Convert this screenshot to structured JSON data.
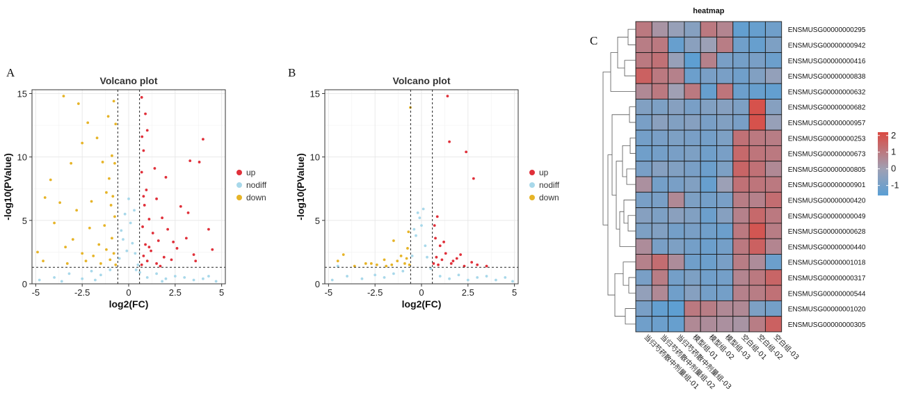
{
  "chart_data": [
    {
      "type": "scatter",
      "panel_label": "A",
      "title": "Volcano plot",
      "xlabel": "log2(FC)",
      "ylabel": "-log10(PValue)",
      "xlim": [
        -5.2,
        5.2
      ],
      "ylim": [
        0,
        15.3
      ],
      "xticks": [
        -5,
        -2.5,
        0,
        2.5,
        5
      ],
      "xtick_labels": [
        "-5",
        "-2.5",
        "0",
        "2.5",
        "5"
      ],
      "yticks": [
        0,
        5,
        10,
        15
      ],
      "ytick_labels": [
        "0",
        "5",
        "10",
        "15"
      ],
      "thresholds": {
        "fc": [
          -0.585,
          0.585
        ],
        "pvalue": 1.3
      },
      "grid": true,
      "legend": "right",
      "series": [
        {
          "name": "up",
          "color": "#e0303a",
          "points": [
            [
              0.7,
              1.5
            ],
            [
              0.8,
              2.2
            ],
            [
              0.9,
              3.1
            ],
            [
              1.0,
              1.8
            ],
            [
              1.2,
              2.6
            ],
            [
              1.5,
              1.6
            ],
            [
              1.9,
              2.1
            ],
            [
              2.3,
              1.9
            ],
            [
              0.75,
              4.5
            ],
            [
              0.85,
              6.2
            ],
            [
              1.1,
              5.1
            ],
            [
              0.95,
              7.4
            ],
            [
              0.7,
              8.8
            ],
            [
              1.3,
              4.0
            ],
            [
              0.8,
              10.5
            ],
            [
              1.0,
              12.1
            ],
            [
              0.7,
              14.7
            ],
            [
              0.9,
              13.4
            ],
            [
              1.6,
              3.4
            ],
            [
              2.1,
              4.3
            ],
            [
              2.6,
              2.8
            ],
            [
              3.1,
              3.6
            ],
            [
              3.5,
              2.3
            ],
            [
              3.2,
              5.6
            ],
            [
              4.3,
              4.3
            ],
            [
              2.8,
              6.1
            ],
            [
              1.5,
              6.7
            ],
            [
              3.8,
              9.6
            ],
            [
              4.0,
              11.4
            ],
            [
              3.3,
              9.7
            ],
            [
              2.0,
              8.4
            ],
            [
              1.4,
              9.1
            ],
            [
              0.72,
              11.6
            ],
            [
              1.8,
              5.2
            ],
            [
              2.4,
              3.3
            ],
            [
              3.6,
              1.8
            ],
            [
              4.5,
              2.7
            ],
            [
              0.8,
              6.9
            ],
            [
              1.1,
              2.9
            ],
            [
              1.7,
              1.4
            ]
          ]
        },
        {
          "name": "nodiff",
          "color": "#a8d8ea",
          "points": [
            [
              -4.8,
              0.3
            ],
            [
              -4.0,
              0.5
            ],
            [
              -3.2,
              0.8
            ],
            [
              -2.5,
              0.4
            ],
            [
              -2.0,
              1.0
            ],
            [
              -1.5,
              0.7
            ],
            [
              -1.0,
              1.1
            ],
            [
              -0.5,
              2.0
            ],
            [
              -0.3,
              3.5
            ],
            [
              -0.2,
              5.5
            ],
            [
              0.0,
              6.7
            ],
            [
              0.1,
              4.8
            ],
            [
              0.2,
              3.2
            ],
            [
              0.35,
              2.4
            ],
            [
              0.5,
              1.5
            ],
            [
              0.6,
              0.9
            ],
            [
              1.0,
              0.5
            ],
            [
              1.5,
              0.8
            ],
            [
              2.0,
              0.4
            ],
            [
              2.5,
              0.6
            ],
            [
              3.0,
              0.5
            ],
            [
              3.5,
              0.3
            ],
            [
              4.0,
              0.4
            ],
            [
              4.7,
              0.2
            ],
            [
              -0.4,
              4.2
            ],
            [
              0.3,
              5.8
            ],
            [
              -0.1,
              2.6
            ],
            [
              0.4,
              1.1
            ],
            [
              -3.6,
              0.2
            ],
            [
              4.3,
              0.6
            ],
            [
              -1.8,
              0.3
            ],
            [
              1.8,
              0.2
            ]
          ]
        },
        {
          "name": "down",
          "color": "#e6b428",
          "points": [
            [
              -0.7,
              1.5
            ],
            [
              -0.8,
              2.4
            ],
            [
              -0.9,
              3.6
            ],
            [
              -1.0,
              1.9
            ],
            [
              -1.2,
              2.7
            ],
            [
              -1.5,
              1.6
            ],
            [
              -1.9,
              2.2
            ],
            [
              -2.3,
              1.8
            ],
            [
              -0.75,
              5.3
            ],
            [
              -0.85,
              6.9
            ],
            [
              -1.05,
              8.3
            ],
            [
              -0.9,
              10.1
            ],
            [
              -0.7,
              12.6
            ],
            [
              -0.8,
              14.4
            ],
            [
              -1.1,
              13.2
            ],
            [
              -1.3,
              4.6
            ],
            [
              -1.6,
              3.1
            ],
            [
              -2.1,
              4.4
            ],
            [
              -2.5,
              2.4
            ],
            [
              -3.0,
              3.5
            ],
            [
              -3.4,
              2.9
            ],
            [
              -3.7,
              6.4
            ],
            [
              -4.2,
              8.2
            ],
            [
              -4.5,
              6.8
            ],
            [
              -4.9,
              2.5
            ],
            [
              -3.5,
              14.8
            ],
            [
              -2.7,
              14.2
            ],
            [
              -2.2,
              12.7
            ],
            [
              -2.5,
              11.1
            ],
            [
              -3.1,
              9.5
            ],
            [
              -4.0,
              4.8
            ],
            [
              -1.4,
              9.6
            ],
            [
              -1.2,
              7.2
            ],
            [
              -2.8,
              5.8
            ],
            [
              -1.7,
              11.5
            ],
            [
              -0.95,
              6.2
            ],
            [
              -0.75,
              9.5
            ],
            [
              -4.6,
              1.8
            ],
            [
              -2.0,
              6.5
            ],
            [
              -3.3,
              1.6
            ]
          ]
        }
      ]
    },
    {
      "type": "scatter",
      "panel_label": "B",
      "title": "Volcano plot",
      "xlabel": "log2(FC)",
      "ylabel": "-log10(PValue)",
      "xlim": [
        -5.2,
        5.2
      ],
      "ylim": [
        0,
        15.3
      ],
      "xticks": [
        -5,
        -2.5,
        0,
        2.5,
        5
      ],
      "xtick_labels": [
        "-5",
        "-2.5",
        "0",
        "2.5",
        "5"
      ],
      "yticks": [
        0,
        5,
        10,
        15
      ],
      "ytick_labels": [
        "0",
        "5",
        "10",
        "15"
      ],
      "thresholds": {
        "fc": [
          -0.585,
          0.585
        ],
        "pvalue": 1.3
      },
      "grid": true,
      "legend": "right",
      "series": [
        {
          "name": "up",
          "color": "#e0303a",
          "points": [
            [
              0.65,
              1.6
            ],
            [
              0.8,
              2.1
            ],
            [
              0.9,
              1.5
            ],
            [
              1.0,
              3.0
            ],
            [
              1.1,
              1.9
            ],
            [
              1.3,
              2.4
            ],
            [
              1.6,
              1.6
            ],
            [
              1.9,
              2.0
            ],
            [
              2.3,
              1.4
            ],
            [
              2.7,
              1.7
            ],
            [
              3.0,
              1.5
            ],
            [
              3.5,
              1.4
            ],
            [
              0.7,
              4.6
            ],
            [
              0.75,
              3.6
            ],
            [
              0.85,
              5.3
            ],
            [
              1.2,
              3.3
            ],
            [
              1.4,
              14.8
            ],
            [
              1.5,
              11.2
            ],
            [
              2.4,
              10.4
            ],
            [
              2.8,
              8.3
            ],
            [
              1.7,
              1.8
            ],
            [
              2.1,
              2.3
            ]
          ]
        },
        {
          "name": "nodiff",
          "color": "#a8d8ea",
          "points": [
            [
              -4.8,
              0.3
            ],
            [
              -4.0,
              0.6
            ],
            [
              -3.2,
              0.4
            ],
            [
              -2.5,
              0.7
            ],
            [
              -2.0,
              0.5
            ],
            [
              -1.5,
              0.8
            ],
            [
              -1.0,
              1.0
            ],
            [
              -0.5,
              2.2
            ],
            [
              -0.3,
              3.8
            ],
            [
              -0.2,
              5.6
            ],
            [
              0.0,
              4.6
            ],
            [
              0.1,
              5.9
            ],
            [
              0.2,
              3.0
            ],
            [
              0.3,
              2.1
            ],
            [
              0.5,
              1.2
            ],
            [
              1.0,
              0.6
            ],
            [
              1.5,
              0.4
            ],
            [
              2.0,
              0.7
            ],
            [
              2.5,
              0.3
            ],
            [
              3.0,
              0.5
            ],
            [
              3.5,
              0.6
            ],
            [
              4.0,
              0.3
            ],
            [
              4.5,
              0.5
            ],
            [
              -4.5,
              1.4
            ],
            [
              4.9,
              0.2
            ],
            [
              -0.1,
              5.2
            ],
            [
              -0.4,
              4.3
            ]
          ]
        },
        {
          "name": "down",
          "color": "#e6b428",
          "points": [
            [
              -0.65,
              1.5
            ],
            [
              -0.8,
              2.0
            ],
            [
              -0.9,
              1.6
            ],
            [
              -1.1,
              2.2
            ],
            [
              -1.3,
              1.8
            ],
            [
              -1.6,
              1.5
            ],
            [
              -2.0,
              1.9
            ],
            [
              -2.4,
              1.5
            ],
            [
              -3.0,
              1.6
            ],
            [
              -3.6,
              1.4
            ],
            [
              -4.2,
              2.3
            ],
            [
              -4.5,
              1.8
            ],
            [
              -0.7,
              4.1
            ],
            [
              -0.6,
              13.9
            ],
            [
              -1.5,
              3.4
            ],
            [
              -0.75,
              2.8
            ],
            [
              -2.7,
              1.6
            ],
            [
              -1.9,
              1.4
            ]
          ]
        }
      ]
    },
    {
      "type": "heatmap",
      "panel_label": "C",
      "title": "heatmap",
      "columns": [
        "当归芍药散中剂量组-01",
        "当归芍药散中剂量组-02",
        "当归芍药散中剂量组-03",
        "模型组-01",
        "模型组-02",
        "模型组-03",
        "空白组-01",
        "空白组-02",
        "空白组-03"
      ],
      "rows": [
        "ENSMUSG00000000295",
        "ENSMUSG00000000942",
        "ENSMUSG00000000416",
        "ENSMUSG00000000838",
        "ENSMUSG00000000632",
        "ENSMUSG00000000682",
        "ENSMUSG00000000957",
        "ENSMUSG00000000253",
        "ENSMUSG00000000673",
        "ENSMUSG00000000805",
        "ENSMUSG00000000901",
        "ENSMUSG00000000420",
        "ENSMUSG00000000049",
        "ENSMUSG00000000628",
        "ENSMUSG00000000440",
        "ENSMUSG00000001018",
        "ENSMUSG00000000317",
        "ENSMUSG00000000544",
        "ENSMUSG00000001020",
        "ENSMUSG00000000305"
      ],
      "values": [
        [
          1.0,
          0.3,
          -0.2,
          -0.6,
          1.0,
          0.7,
          -1.4,
          -1.3,
          -1.1
        ],
        [
          0.9,
          1.0,
          -1.3,
          -0.5,
          -0.1,
          0.9,
          -1.1,
          -1.3,
          -0.8
        ],
        [
          1.0,
          1.2,
          -0.2,
          -1.5,
          0.8,
          -0.9,
          -1.0,
          -0.9,
          -1.2
        ],
        [
          1.6,
          1.0,
          0.8,
          -1.2,
          -0.9,
          -0.9,
          -1.1,
          -0.7,
          -0.3
        ],
        [
          0.6,
          1.0,
          0.0,
          1.0,
          -1.3,
          1.1,
          -1.2,
          -1.3,
          -1.4
        ],
        [
          -0.7,
          -0.8,
          -0.6,
          -0.9,
          -0.7,
          -0.6,
          -0.8,
          2.0,
          -0.6
        ],
        [
          -0.9,
          -0.5,
          -0.7,
          -0.6,
          -0.9,
          -0.7,
          -0.9,
          2.0,
          -0.2
        ],
        [
          -1.0,
          -0.9,
          -0.8,
          -0.9,
          -1.0,
          -0.8,
          1.2,
          1.0,
          0.9
        ],
        [
          -1.1,
          -1.0,
          -0.9,
          -0.8,
          -1.1,
          -0.9,
          1.4,
          1.1,
          1.0
        ],
        [
          -0.9,
          -0.6,
          -0.7,
          -0.9,
          -1.2,
          -0.8,
          1.5,
          1.2,
          0.6
        ],
        [
          0.4,
          -1.0,
          -0.9,
          -0.7,
          -1.3,
          -0.1,
          1.2,
          1.1,
          1.0
        ],
        [
          -0.9,
          -0.9,
          0.6,
          -0.8,
          -1.0,
          -0.9,
          0.9,
          0.8,
          1.3
        ],
        [
          -0.6,
          -0.8,
          -0.5,
          -0.7,
          -1.2,
          -0.6,
          0.8,
          1.4,
          1.0
        ],
        [
          -0.8,
          -0.7,
          -1.0,
          -0.9,
          -1.1,
          -1.2,
          1.0,
          1.9,
          0.9
        ],
        [
          0.5,
          -0.9,
          -0.8,
          -1.0,
          -1.2,
          -1.0,
          1.0,
          1.6,
          0.7
        ],
        [
          0.8,
          1.3,
          0.5,
          -1.1,
          -1.2,
          -0.9,
          0.9,
          0.5,
          -1.2
        ],
        [
          -0.9,
          0.9,
          -1.0,
          -0.8,
          -1.1,
          -1.0,
          0.7,
          1.0,
          1.5
        ],
        [
          -0.3,
          0.6,
          -1.1,
          -0.6,
          -1.0,
          -1.0,
          0.8,
          0.9,
          1.2
        ],
        [
          -0.9,
          -1.4,
          -1.5,
          1.0,
          0.9,
          0.6,
          0.6,
          -0.8,
          -1.0
        ],
        [
          -1.1,
          -1.2,
          -1.3,
          0.6,
          0.5,
          0.4,
          0.3,
          0.9,
          1.6
        ]
      ],
      "color_scale": {
        "min": -1.6,
        "max": 2.2,
        "low": "#5a9fd4",
        "mid": "#a0a0b4",
        "high": "#db4a42"
      },
      "legend_ticks": [
        2,
        1,
        0,
        -1
      ],
      "legend_tick_labels": [
        "2",
        "1",
        "0",
        "-1"
      ]
    }
  ]
}
